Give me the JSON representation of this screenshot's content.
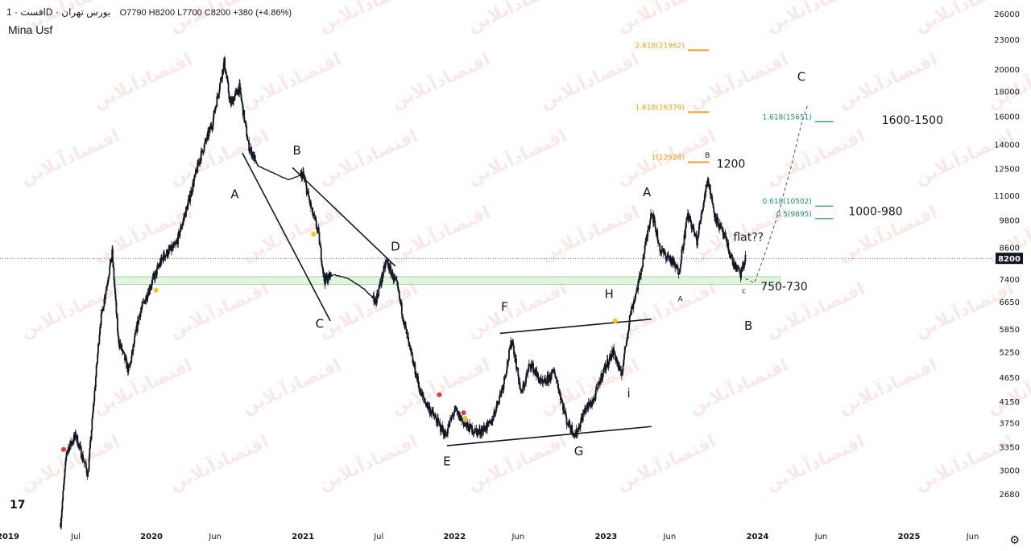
{
  "header": {
    "symbol": "افست · 1D · بورس تهران",
    "ohlc": "O7790  H8200  L7700  C8200  +380 (+4.86%)",
    "author": "Mina Usf"
  },
  "colors": {
    "candle": "#131722",
    "fib_orange": "#f59c14",
    "fib_teal": "#1a8c7d",
    "zone_fill": "#d6efd2",
    "marker_red": "#e53935",
    "marker_yellow": "#f5c518"
  },
  "price_tag": "8200",
  "watermark": "اقتصادآنلاین",
  "chart_data": {
    "type": "candlestick",
    "y_scale": "log",
    "ylim": [
      2300,
      26500
    ],
    "y_ticks": [
      26000,
      23000,
      20000,
      18000,
      16000,
      14000,
      12500,
      11000,
      9800,
      8600,
      7400,
      6650,
      5850,
      5250,
      4650,
      4150,
      3750,
      3350,
      3000,
      2680
    ],
    "x_ticks": [
      {
        "label": "2019",
        "t": 2019.0,
        "bold": true
      },
      {
        "label": "Jul",
        "t": 2019.5,
        "bold": false
      },
      {
        "label": "2020",
        "t": 2020.0,
        "bold": true
      },
      {
        "label": "Jun",
        "t": 2020.42,
        "bold": false
      },
      {
        "label": "2021",
        "t": 2021.0,
        "bold": true
      },
      {
        "label": "Jul",
        "t": 2021.5,
        "bold": false
      },
      {
        "label": "2022",
        "t": 2022.0,
        "bold": true
      },
      {
        "label": "Jun",
        "t": 2022.42,
        "bold": false
      },
      {
        "label": "2023",
        "t": 2023.0,
        "bold": true
      },
      {
        "label": "Jun",
        "t": 2023.42,
        "bold": false
      },
      {
        "label": "2024",
        "t": 2024.0,
        "bold": true
      },
      {
        "label": "Jun",
        "t": 2024.42,
        "bold": false
      },
      {
        "label": "2025",
        "t": 2025.0,
        "bold": true
      },
      {
        "label": "Jun",
        "t": 2025.42,
        "bold": false
      }
    ],
    "price_path": [
      {
        "t": 2019.4,
        "p": 2350
      },
      {
        "t": 2019.44,
        "p": 3300
      },
      {
        "t": 2019.5,
        "p": 3550
      },
      {
        "t": 2019.58,
        "p": 2950
      },
      {
        "t": 2019.66,
        "p": 6000
      },
      {
        "t": 2019.74,
        "p": 8400
      },
      {
        "t": 2019.78,
        "p": 5600
      },
      {
        "t": 2019.85,
        "p": 4800
      },
      {
        "t": 2019.92,
        "p": 6300
      },
      {
        "t": 2020.0,
        "p": 7300
      },
      {
        "t": 2020.08,
        "p": 8300
      },
      {
        "t": 2020.16,
        "p": 8700
      },
      {
        "t": 2020.24,
        "p": 10600
      },
      {
        "t": 2020.32,
        "p": 13200
      },
      {
        "t": 2020.4,
        "p": 15500
      },
      {
        "t": 2020.48,
        "p": 20800
      },
      {
        "t": 2020.52,
        "p": 17000
      },
      {
        "t": 2020.58,
        "p": 18400
      },
      {
        "t": 2020.64,
        "p": 14000
      },
      {
        "t": 2020.7,
        "p": 12700
      },
      {
        "t": 2020.8,
        "p": 12300
      },
      {
        "t": 2020.9,
        "p": 11900
      },
      {
        "t": 2021.0,
        "p": 12200
      },
      {
        "t": 2021.06,
        "p": 10200
      },
      {
        "t": 2021.1,
        "p": 9300
      },
      {
        "t": 2021.14,
        "p": 7400
      },
      {
        "t": 2021.2,
        "p": 7600
      },
      {
        "t": 2021.3,
        "p": 7450
      },
      {
        "t": 2021.4,
        "p": 7100
      },
      {
        "t": 2021.48,
        "p": 6700
      },
      {
        "t": 2021.55,
        "p": 8100
      },
      {
        "t": 2021.62,
        "p": 7200
      },
      {
        "t": 2021.7,
        "p": 5400
      },
      {
        "t": 2021.78,
        "p": 4300
      },
      {
        "t": 2021.86,
        "p": 3900
      },
      {
        "t": 2021.94,
        "p": 3550
      },
      {
        "t": 2022.0,
        "p": 4000
      },
      {
        "t": 2022.08,
        "p": 3700
      },
      {
        "t": 2022.16,
        "p": 3600
      },
      {
        "t": 2022.24,
        "p": 3750
      },
      {
        "t": 2022.32,
        "p": 4500
      },
      {
        "t": 2022.38,
        "p": 5600
      },
      {
        "t": 2022.44,
        "p": 4300
      },
      {
        "t": 2022.5,
        "p": 5000
      },
      {
        "t": 2022.58,
        "p": 4500
      },
      {
        "t": 2022.66,
        "p": 4800
      },
      {
        "t": 2022.74,
        "p": 3800
      },
      {
        "t": 2022.8,
        "p": 3550
      },
      {
        "t": 2022.86,
        "p": 4000
      },
      {
        "t": 2022.92,
        "p": 4200
      },
      {
        "t": 2022.98,
        "p": 4800
      },
      {
        "t": 2023.05,
        "p": 5300
      },
      {
        "t": 2023.1,
        "p": 4700
      },
      {
        "t": 2023.16,
        "p": 6300
      },
      {
        "t": 2023.22,
        "p": 7400
      },
      {
        "t": 2023.3,
        "p": 10300
      },
      {
        "t": 2023.36,
        "p": 8500
      },
      {
        "t": 2023.42,
        "p": 8200
      },
      {
        "t": 2023.48,
        "p": 7700
      },
      {
        "t": 2023.54,
        "p": 10100
      },
      {
        "t": 2023.6,
        "p": 8900
      },
      {
        "t": 2023.67,
        "p": 12000
      },
      {
        "t": 2023.72,
        "p": 10000
      },
      {
        "t": 2023.78,
        "p": 9100
      },
      {
        "t": 2023.84,
        "p": 8000
      },
      {
        "t": 2023.89,
        "p": 7600
      },
      {
        "t": 2023.92,
        "p": 8200
      }
    ],
    "projection": [
      {
        "t": 2023.92,
        "p": 7450
      },
      {
        "t": 2023.98,
        "p": 7300
      },
      {
        "t": 2024.05,
        "p": 8400
      },
      {
        "t": 2024.14,
        "p": 10200
      },
      {
        "t": 2024.22,
        "p": 12600
      },
      {
        "t": 2024.29,
        "p": 15500
      },
      {
        "t": 2024.33,
        "p": 16900
      }
    ],
    "support_zone": {
      "t_start": 2019.76,
      "t_end": 2024.15,
      "low": 7250,
      "high": 7520
    },
    "current_price": 8200,
    "trendlines": [
      {
        "name": "wedge-lower",
        "t1": 2020.6,
        "p1": 13500,
        "t2": 2021.18,
        "p2": 6100
      },
      {
        "name": "wedge-upper",
        "t1": 2020.93,
        "p1": 12600,
        "t2": 2021.61,
        "p2": 7900
      },
      {
        "name": "range-top",
        "t1": 2022.3,
        "p1": 5750,
        "t2": 2023.3,
        "p2": 6150
      },
      {
        "name": "range-bottom",
        "t1": 2021.95,
        "p1": 3380,
        "t2": 2023.3,
        "p2": 3700
      }
    ],
    "fib_levels": [
      {
        "label": "2.618(21962)",
        "value": 21962,
        "color": "orange",
        "t_start": 2023.54,
        "t_end": 2023.68
      },
      {
        "label": "1.618(16379)",
        "value": 16379,
        "color": "orange",
        "t_start": 2023.54,
        "t_end": 2023.68
      },
      {
        "label": "1(12928)",
        "value": 12928,
        "color": "orange",
        "t_start": 2023.54,
        "t_end": 2023.68
      },
      {
        "label": "1.618(15651)",
        "value": 15651,
        "color": "teal",
        "t_start": 2024.38,
        "t_end": 2024.5
      },
      {
        "label": "0.618(10502)",
        "value": 10502,
        "color": "teal",
        "t_start": 2024.38,
        "t_end": 2024.5
      },
      {
        "label": "0.5(9895)",
        "value": 9895,
        "color": "teal",
        "t_start": 2024.38,
        "t_end": 2024.5
      }
    ],
    "wave_labels": [
      {
        "text": "A",
        "t": 2020.55,
        "p": 10900,
        "size": "big"
      },
      {
        "text": "B",
        "t": 2020.96,
        "p": 13400,
        "size": "big"
      },
      {
        "text": "C",
        "t": 2021.11,
        "p": 5900,
        "size": "big"
      },
      {
        "text": "D",
        "t": 2021.61,
        "p": 8500,
        "size": "big"
      },
      {
        "text": "E",
        "t": 2021.95,
        "p": 3080,
        "size": "big"
      },
      {
        "text": "F",
        "t": 2022.33,
        "p": 6400,
        "size": "big"
      },
      {
        "text": "G",
        "t": 2022.82,
        "p": 3230,
        "size": "big"
      },
      {
        "text": "H",
        "t": 2023.02,
        "p": 6800,
        "size": "big"
      },
      {
        "text": "i",
        "t": 2023.15,
        "p": 4250,
        "size": "big"
      },
      {
        "text": "A",
        "t": 2023.27,
        "p": 11000,
        "size": "big"
      },
      {
        "text": "B",
        "t": 2023.67,
        "p": 13200,
        "size": "small"
      },
      {
        "text": "A",
        "t": 2023.49,
        "p": 6700,
        "size": "small"
      },
      {
        "text": "c",
        "t": 2023.91,
        "p": 6950,
        "size": "small"
      },
      {
        "text": "B",
        "t": 2023.94,
        "p": 5850,
        "size": "big"
      },
      {
        "text": "C",
        "t": 2024.29,
        "p": 19000,
        "size": "big"
      }
    ],
    "notes": [
      {
        "text": "1200",
        "t": 2023.73,
        "p": 12600
      },
      {
        "text": "1000-980",
        "t": 2024.6,
        "p": 10050
      },
      {
        "text": "flat??",
        "t": 2023.84,
        "p": 8900
      },
      {
        "text": "750-730",
        "t": 2024.02,
        "p": 7050
      },
      {
        "text": "1600-1500",
        "t": 2024.82,
        "p": 15500
      }
    ],
    "markers": [
      {
        "t": 2019.42,
        "p": 3320,
        "color": "red"
      },
      {
        "t": 2020.03,
        "p": 7050,
        "color": "yellow"
      },
      {
        "t": 2021.07,
        "p": 9200,
        "color": "yellow"
      },
      {
        "t": 2021.9,
        "p": 4300,
        "color": "red"
      },
      {
        "t": 2022.06,
        "p": 3950,
        "color": "red"
      },
      {
        "t": 2022.07,
        "p": 3850,
        "color": "yellow"
      },
      {
        "t": 2023.06,
        "p": 6100,
        "color": "yellow"
      }
    ]
  }
}
